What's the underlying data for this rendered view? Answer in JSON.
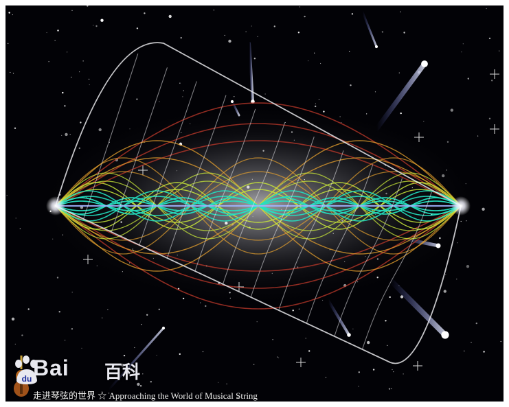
{
  "image": {
    "subject": "vibrating string",
    "background_color": "#020206"
  },
  "watermark": {
    "brand_latin": "Bai",
    "brand_du": "du",
    "brand_cn": "百科",
    "caption": "走进琴弦的世界 ☆ Approaching the World of Musical String",
    "icons": [
      "violin-icon",
      "paw-icon"
    ]
  },
  "colors": {
    "outer_modes": "#c0392b",
    "mid_modes": "#e8a22e",
    "inner_modes": "#c9e83a",
    "core_modes": "#24e0c0",
    "string_frames": "#e6e6ea"
  }
}
